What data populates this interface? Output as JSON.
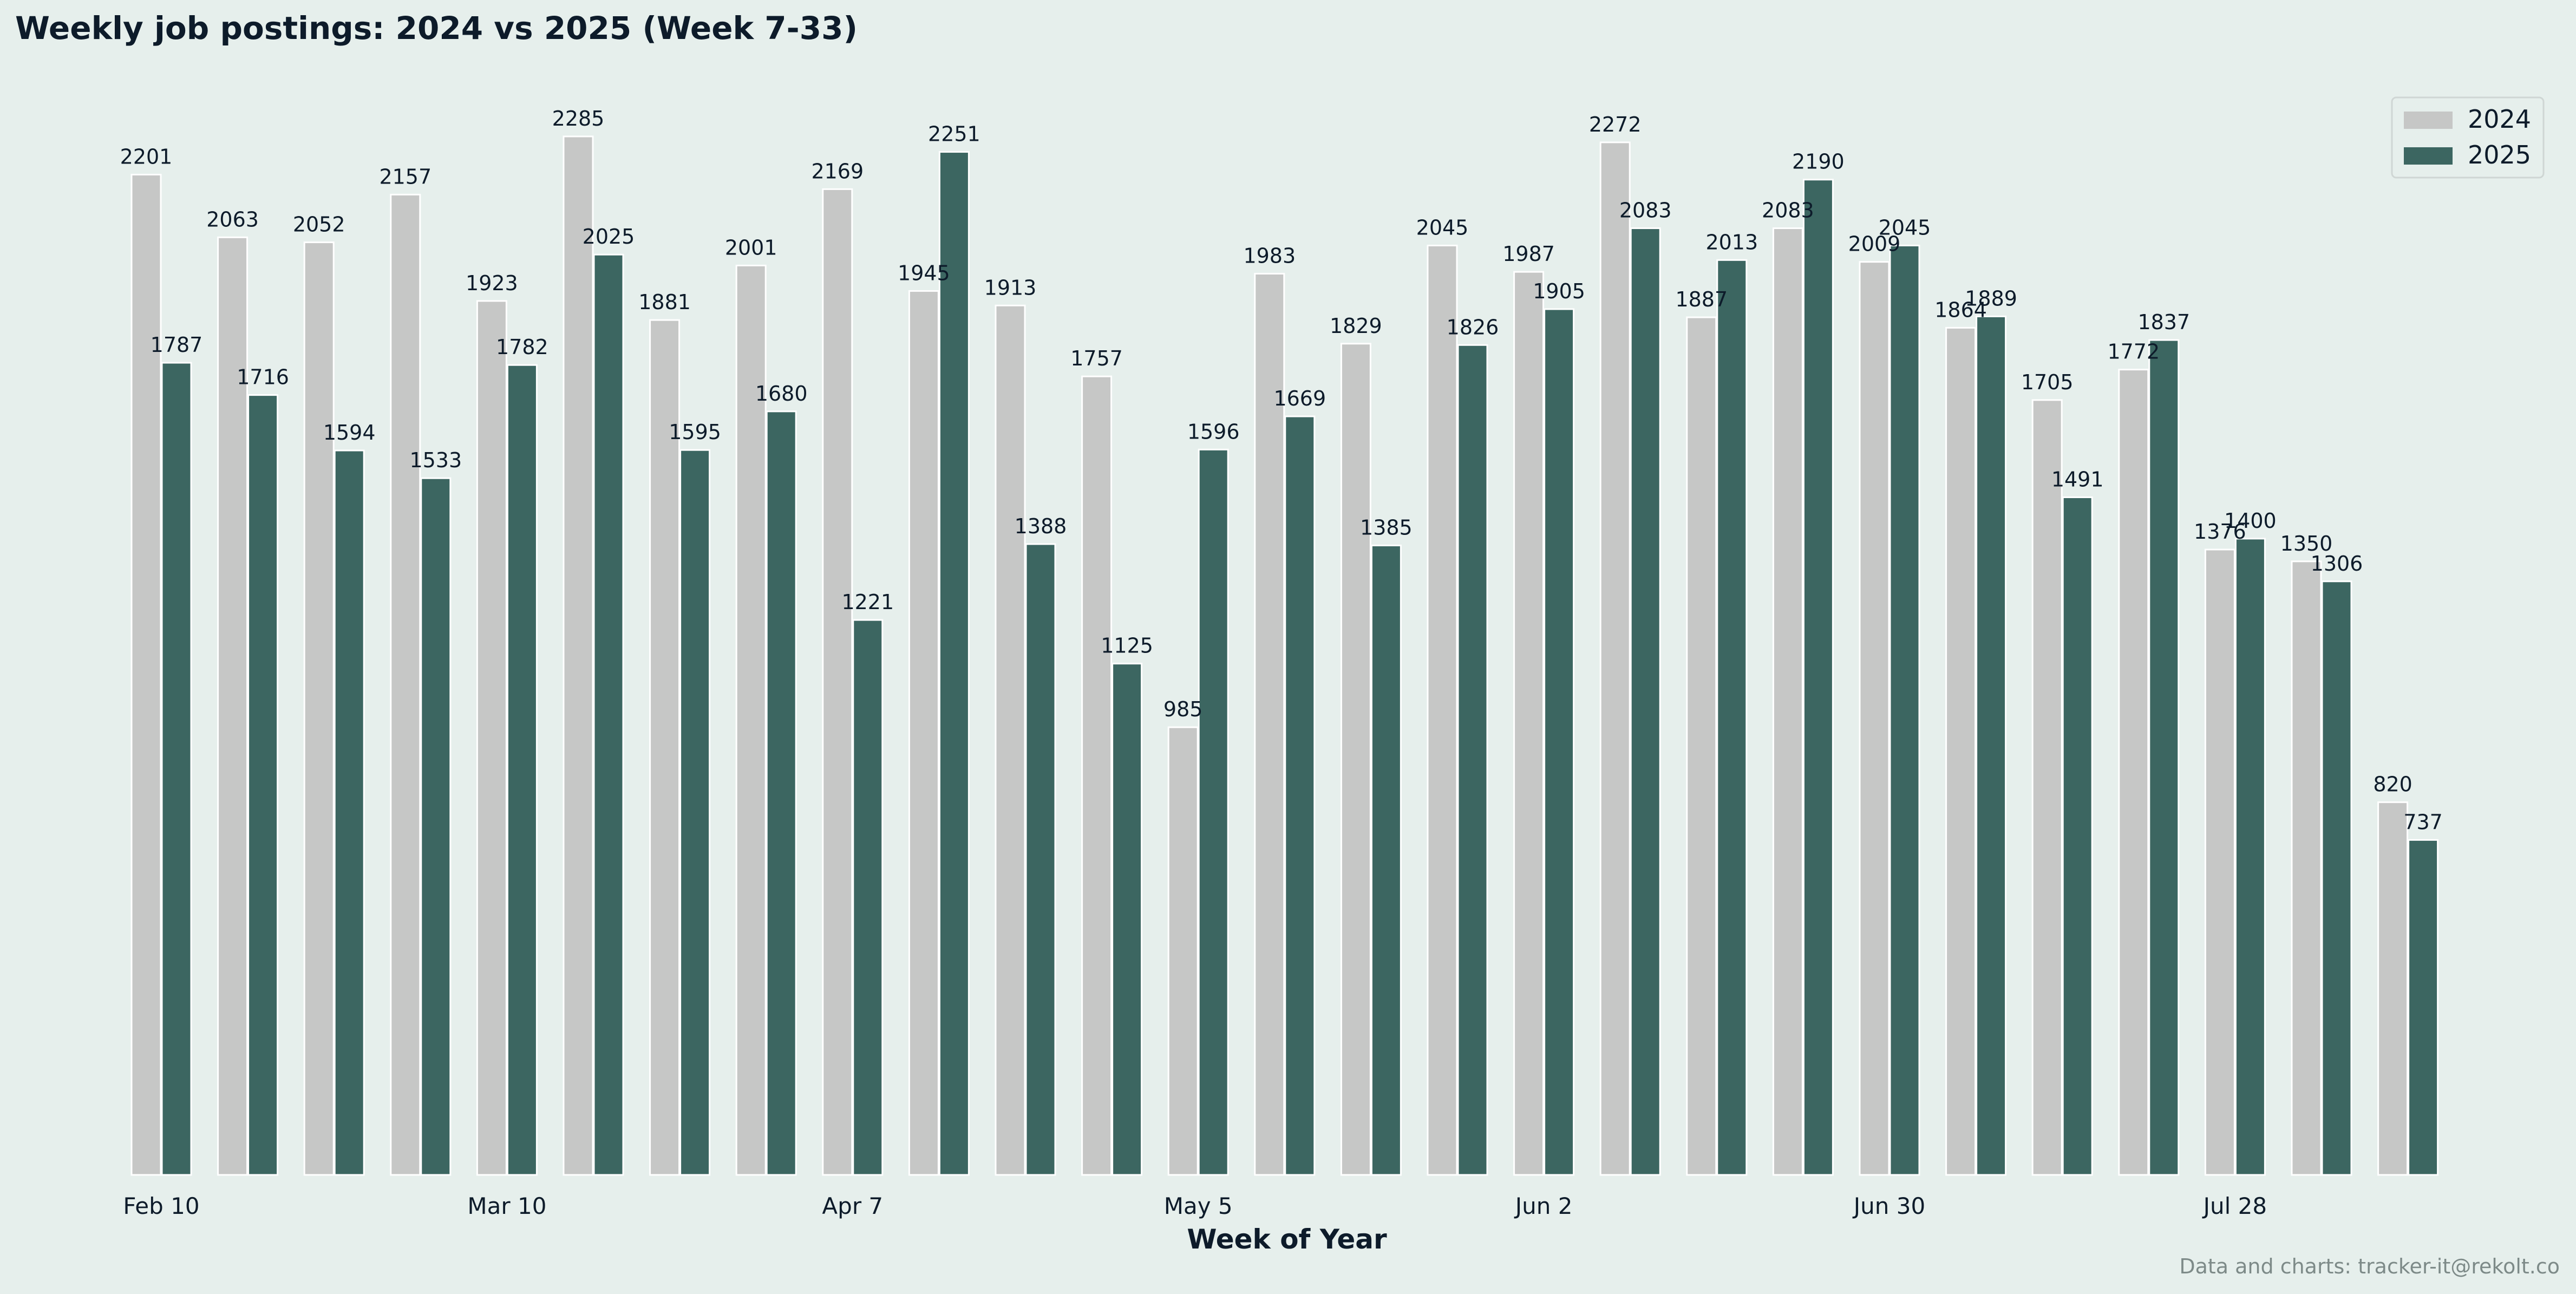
{
  "chart_data": {
    "type": "bar",
    "title": "Weekly job postings: 2024 vs 2025 (Week 7-33)",
    "xlabel": "Week of Year",
    "ylabel": "",
    "ylim": [
      0,
      2400
    ],
    "grid": false,
    "legend_position": "top-right",
    "categories": [
      "Feb 10",
      "",
      "",
      "",
      "Mar 10",
      "",
      "",
      "",
      "Apr 7",
      "",
      "",
      "",
      "May 5",
      "",
      "",
      "",
      "Jun 2",
      "",
      "",
      "",
      "Jun 30",
      "",
      "",
      "",
      "Jul 28",
      "",
      ""
    ],
    "series": [
      {
        "name": "2024",
        "color": "#c6c7c6",
        "values": [
          2201,
          2063,
          2052,
          2157,
          1923,
          2285,
          1881,
          2001,
          2169,
          1945,
          1913,
          1757,
          985,
          1983,
          1829,
          2045,
          1987,
          2272,
          1887,
          2083,
          2009,
          1864,
          1705,
          1772,
          1376,
          1350,
          820
        ]
      },
      {
        "name": "2025",
        "color": "#3c6661",
        "values": [
          1787,
          1716,
          1594,
          1533,
          1782,
          2025,
          1595,
          1680,
          1221,
          2251,
          1388,
          1125,
          1596,
          1669,
          1385,
          1826,
          1905,
          2083,
          2013,
          2190,
          2045,
          1889,
          1491,
          1837,
          1400,
          1306,
          737
        ]
      }
    ]
  },
  "footer": "Data and charts: tracker-it@rekolt.co"
}
